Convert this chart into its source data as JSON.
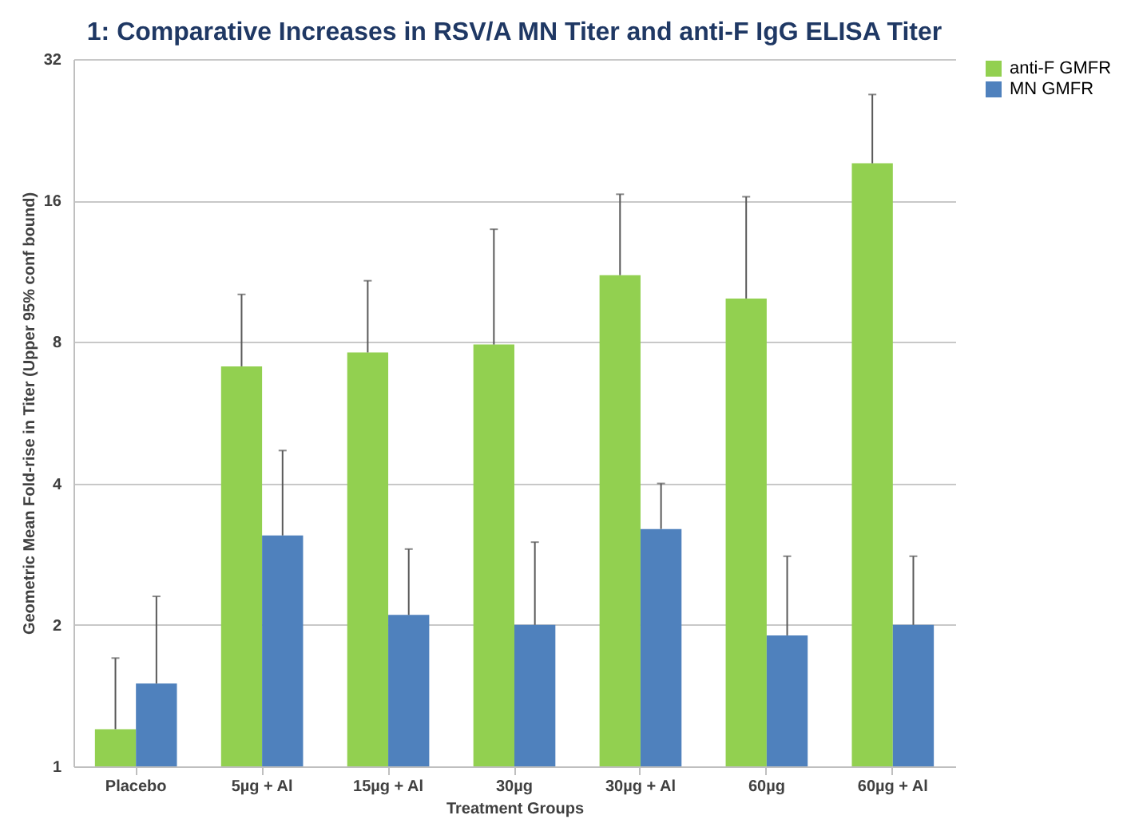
{
  "chart_data": {
    "type": "bar",
    "title": "1: Comparative Increases in RSV/A MN Titer and anti-F IgG ELISA Titer",
    "xlabel": "Treatment Groups",
    "ylabel": "Geometric Mean Fold-rise in Titer (Upper 95% conf bound)",
    "categories": [
      "Placebo",
      "5µg + Al",
      "15µg + Al",
      "30µg",
      "30µg + Al",
      "60µg",
      "60µg + Al"
    ],
    "series": [
      {
        "name": "anti-F GMFR",
        "color": "#92d050",
        "values": [
          1.2,
          7.1,
          7.6,
          7.9,
          11.1,
          9.9,
          19.2
        ],
        "errors": [
          [
            1.2,
            1.7
          ],
          [
            7.1,
            10.1
          ],
          [
            7.6,
            10.8
          ],
          [
            7.9,
            13.9
          ],
          [
            11.1,
            16.5
          ],
          [
            9.9,
            16.3
          ],
          [
            19.2,
            26.9
          ]
        ]
      },
      {
        "name": "MN GMFR",
        "color": "#4f81bd",
        "values": [
          1.5,
          3.1,
          2.1,
          2.0,
          3.2,
          1.9,
          2.0
        ],
        "errors": [
          [
            1.5,
            2.3
          ],
          [
            3.1,
            4.7
          ],
          [
            2.1,
            2.9
          ],
          [
            2.0,
            3.0
          ],
          [
            3.2,
            4.0
          ],
          [
            1.9,
            2.8
          ],
          [
            2.0,
            2.8
          ]
        ]
      }
    ],
    "log": true,
    "ylim": [
      1,
      32
    ],
    "yticks": [
      1,
      2,
      4,
      8,
      16,
      32
    ],
    "grid": "y",
    "legend": "right"
  }
}
